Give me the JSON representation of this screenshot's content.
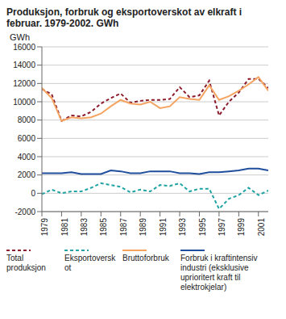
{
  "chart_data": {
    "type": "line",
    "title": "Produksjon, forbruk og eksportoverskot av elkraft i februar. 1979-2002. GWh",
    "y_label": "GWh",
    "x": [
      1979,
      1980,
      1981,
      1982,
      1983,
      1984,
      1985,
      1986,
      1987,
      1988,
      1989,
      1990,
      1991,
      1992,
      1993,
      1994,
      1995,
      1996,
      1997,
      1998,
      1999,
      2000,
      2001,
      2002
    ],
    "series": [
      {
        "name": "Total produksjon",
        "color": "#8b1a2b",
        "line_style": "dashed",
        "values": [
          11400,
          10800,
          7900,
          8500,
          8400,
          8900,
          9800,
          10400,
          10900,
          9900,
          10100,
          10200,
          10200,
          10300,
          11600,
          10500,
          10700,
          12300,
          8500,
          10000,
          11000,
          12500,
          12500,
          11500
        ]
      },
      {
        "name": "Eksportoverskot",
        "color": "#1fa3a3",
        "line_style": "dashed",
        "values": [
          -100,
          400,
          0,
          200,
          200,
          600,
          1100,
          900,
          700,
          100,
          400,
          200,
          900,
          800,
          1100,
          200,
          500,
          500,
          -1700,
          -600,
          -200,
          600,
          -200,
          300
        ]
      },
      {
        "name": "Bruttoforbruk",
        "color": "#f4a460",
        "line_style": "solid",
        "values": [
          11500,
          10400,
          7900,
          8300,
          8200,
          8300,
          8700,
          9500,
          10200,
          9800,
          9700,
          10000,
          9300,
          9500,
          10500,
          10300,
          10200,
          11800,
          10200,
          10600,
          11200,
          11900,
          12700,
          11200
        ]
      },
      {
        "name": "Forbruk i kraftintensiv industri (eksklusive uprioritert kraft til elektrokjelar)",
        "color": "#1f4e9c",
        "line_style": "solid",
        "values": [
          2200,
          2200,
          2200,
          2300,
          2100,
          2100,
          2100,
          2500,
          2400,
          2200,
          2200,
          2400,
          2400,
          2400,
          2200,
          2200,
          2100,
          2300,
          2300,
          2400,
          2500,
          2700,
          2700,
          2500
        ]
      }
    ],
    "xlim": [
      1979,
      2002
    ],
    "xticks": [
      1979,
      1981,
      1983,
      1985,
      1987,
      1989,
      1991,
      1993,
      1995,
      1997,
      1999,
      2001
    ],
    "ylim": [
      -2000,
      16000
    ],
    "yticks": [
      -2000,
      0,
      2000,
      4000,
      6000,
      8000,
      10000,
      12000,
      14000,
      16000
    ],
    "grid": true,
    "legend": "bottom"
  }
}
